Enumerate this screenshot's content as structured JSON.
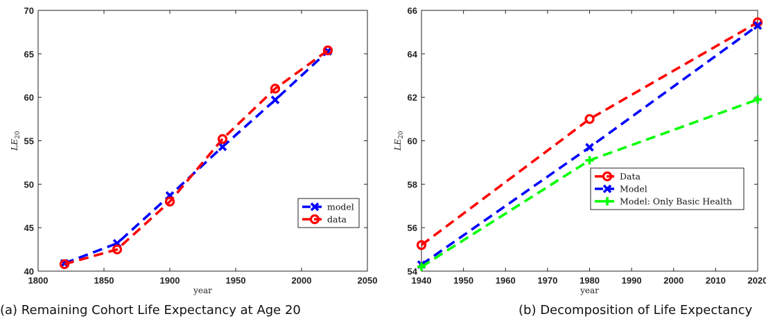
{
  "chart_data": [
    {
      "type": "line",
      "xlabel": "year",
      "ylabel_base": "LE",
      "ylabel_sub": "20",
      "xlim": [
        1800,
        2050
      ],
      "ylim": [
        40,
        70
      ],
      "xticks": [
        1800,
        1850,
        1900,
        1950,
        2000,
        2050
      ],
      "yticks": [
        40,
        45,
        50,
        55,
        60,
        65,
        70
      ],
      "grid": false,
      "legend_position": "lower-right",
      "series": [
        {
          "name": "model",
          "color": "#0000ff",
          "marker": "x",
          "x": [
            1820,
            1860,
            1900,
            1940,
            1980,
            2020
          ],
          "y": [
            40.9,
            43.2,
            48.7,
            54.3,
            59.7,
            65.3
          ]
        },
        {
          "name": "data",
          "color": "#ff0000",
          "marker": "o",
          "x": [
            1820,
            1860,
            1900,
            1940,
            1980,
            2020
          ],
          "y": [
            40.8,
            42.5,
            48.0,
            55.2,
            61.0,
            65.4
          ]
        }
      ],
      "caption": "(a) Remaining Cohort Life Expectancy at Age 20"
    },
    {
      "type": "line",
      "xlabel": "year",
      "ylabel_base": "LE",
      "ylabel_sub": "20",
      "xlim": [
        1940,
        2020
      ],
      "ylim": [
        54,
        66
      ],
      "xticks": [
        1940,
        1950,
        1960,
        1970,
        1980,
        1990,
        2000,
        2010,
        2020
      ],
      "yticks": [
        54,
        56,
        58,
        60,
        62,
        64,
        66
      ],
      "grid": false,
      "legend_position": "center-right",
      "series": [
        {
          "name": "Data",
          "color": "#ff0000",
          "marker": "o",
          "x": [
            1940,
            1980,
            2020
          ],
          "y": [
            55.2,
            61.0,
            65.45
          ]
        },
        {
          "name": "Model",
          "color": "#0000ff",
          "marker": "x",
          "x": [
            1940,
            1980,
            2020
          ],
          "y": [
            54.3,
            59.7,
            65.3
          ]
        },
        {
          "name": "Model: Only Basic Health",
          "color": "#00ff00",
          "marker": "+",
          "x": [
            1940,
            1980,
            2020
          ],
          "y": [
            54.2,
            59.1,
            61.9
          ]
        }
      ],
      "caption": "(b) Decomposition of Life Expectancy"
    }
  ]
}
